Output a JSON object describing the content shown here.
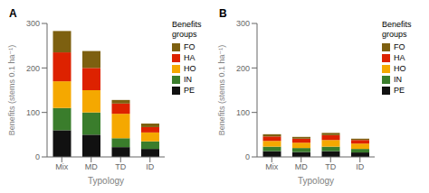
{
  "chart_data": [
    {
      "type": "bar",
      "stacked": true,
      "title": "A",
      "categories": [
        "Mix",
        "MD",
        "TD",
        "ID"
      ],
      "series": [
        {
          "name": "PE",
          "color": "#111111",
          "values": [
            60,
            50,
            22,
            18
          ]
        },
        {
          "name": "IN",
          "color": "#3a7d2c",
          "values": [
            50,
            50,
            20,
            17
          ]
        },
        {
          "name": "HO",
          "color": "#f5a800",
          "values": [
            60,
            50,
            55,
            20
          ]
        },
        {
          "name": "HA",
          "color": "#dd2200",
          "values": [
            65,
            50,
            23,
            12
          ]
        },
        {
          "name": "FO",
          "color": "#7d6010",
          "values": [
            48,
            38,
            8,
            8
          ]
        }
      ],
      "xlabel": "Typology",
      "ylabel": "Benefits (stems 0.1 ha⁻¹)",
      "ylim": [
        0,
        300
      ],
      "yticks": [
        0,
        100,
        200,
        300
      ],
      "legend": "upper right",
      "legend_title": "Benefits\ngroups"
    },
    {
      "type": "bar",
      "stacked": true,
      "title": "B",
      "categories": [
        "Mix",
        "MD",
        "TD",
        "ID"
      ],
      "series": [
        {
          "name": "PE",
          "color": "#111111",
          "values": [
            13,
            11,
            13,
            10
          ]
        },
        {
          "name": "IN",
          "color": "#3a7d2c",
          "values": [
            10,
            9,
            10,
            8
          ]
        },
        {
          "name": "HO",
          "color": "#f5a800",
          "values": [
            13,
            12,
            15,
            12
          ]
        },
        {
          "name": "HA",
          "color": "#dd2200",
          "values": [
            10,
            9,
            11,
            8
          ]
        },
        {
          "name": "FO",
          "color": "#7d6010",
          "values": [
            5,
            4,
            5,
            3
          ]
        }
      ],
      "xlabel": "Typology",
      "ylabel": "Benefits (stems 0.1 ha⁻¹)",
      "ylim": [
        0,
        300
      ],
      "yticks": [
        0,
        100,
        200,
        300
      ],
      "legend": "upper right",
      "legend_title": "Benefits\ngroups"
    }
  ]
}
